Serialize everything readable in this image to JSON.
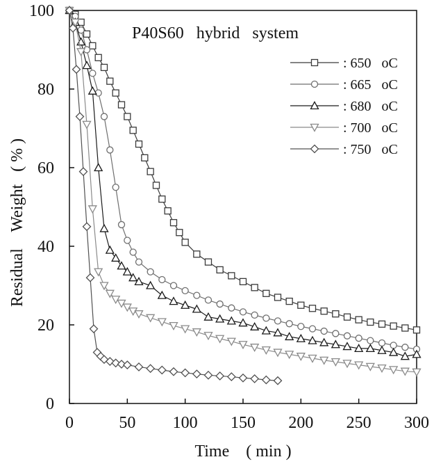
{
  "chart_data": {
    "type": "line",
    "title": "P40S60   hybrid   system",
    "xlabel": "Time    ( min )",
    "ylabel": "Residual    Weight   ( % )",
    "xlim": [
      0,
      300
    ],
    "ylim": [
      0,
      100
    ],
    "x_ticks": [
      0,
      50,
      100,
      150,
      200,
      250,
      300
    ],
    "y_ticks": [
      0,
      20,
      40,
      60,
      80,
      100
    ],
    "grid": false,
    "legend_position": "top-right",
    "series": [
      {
        "name": ": 650   oC",
        "marker": "square",
        "color": "#3a3a3a",
        "x": [
          0,
          5,
          10,
          15,
          20,
          25,
          30,
          35,
          40,
          45,
          50,
          55,
          60,
          65,
          70,
          75,
          80,
          85,
          90,
          95,
          100,
          110,
          120,
          130,
          140,
          150,
          160,
          170,
          180,
          190,
          200,
          210,
          220,
          230,
          240,
          250,
          260,
          270,
          280,
          290,
          300
        ],
        "y": [
          100,
          99,
          97,
          94,
          91,
          88,
          85.5,
          82,
          79,
          76,
          73,
          69.5,
          66,
          62.5,
          59,
          55.5,
          52,
          49,
          46,
          43.5,
          41,
          38,
          36,
          34,
          32.5,
          31,
          29.5,
          28,
          27,
          26,
          25,
          24.2,
          23.5,
          22.8,
          22,
          21.3,
          20.7,
          20.2,
          19.7,
          19.2,
          18.7
        ]
      },
      {
        "name": ": 665   oC",
        "marker": "circle",
        "color": "#6e6e6e",
        "x": [
          0,
          5,
          10,
          15,
          20,
          25,
          30,
          35,
          40,
          45,
          50,
          55,
          60,
          70,
          80,
          90,
          100,
          110,
          120,
          130,
          140,
          150,
          160,
          170,
          180,
          190,
          200,
          210,
          220,
          230,
          240,
          250,
          260,
          270,
          280,
          290,
          300
        ],
        "y": [
          100,
          98.5,
          95,
          90,
          84,
          79,
          73,
          64.5,
          55,
          45.5,
          41.5,
          38.5,
          36,
          33.5,
          31.5,
          30,
          28.7,
          27.5,
          26.3,
          25.3,
          24.3,
          23.3,
          22.5,
          21.7,
          21,
          20.3,
          19.6,
          19,
          18.4,
          17.8,
          17.2,
          16.6,
          16,
          15.4,
          14.8,
          14.3,
          13.8
        ]
      },
      {
        "name": ": 680   oC",
        "marker": "triangle-up",
        "color": "#1a1a1a",
        "x": [
          0,
          5,
          10,
          15,
          20,
          25,
          30,
          35,
          40,
          45,
          50,
          55,
          60,
          70,
          80,
          90,
          100,
          110,
          120,
          130,
          140,
          150,
          160,
          170,
          180,
          190,
          200,
          210,
          220,
          230,
          240,
          250,
          260,
          270,
          280,
          290,
          300
        ],
        "y": [
          100,
          97,
          92,
          86,
          79.5,
          60,
          44.5,
          39,
          37,
          35,
          33.5,
          32,
          31,
          30,
          27.5,
          26,
          25,
          24,
          22,
          21.5,
          21,
          20.5,
          19.5,
          18.5,
          18,
          17,
          16.5,
          16,
          15.5,
          15,
          14.5,
          14,
          14,
          13.5,
          13,
          12,
          12.5
        ]
      },
      {
        "name": ": 700   oC",
        "marker": "triangle-down",
        "color": "#8a8a8a",
        "x": [
          0,
          5,
          10,
          15,
          20,
          25,
          30,
          35,
          40,
          45,
          50,
          55,
          60,
          70,
          80,
          90,
          100,
          110,
          120,
          130,
          140,
          150,
          160,
          170,
          180,
          190,
          200,
          210,
          220,
          230,
          240,
          250,
          260,
          270,
          280,
          290,
          300
        ],
        "y": [
          100,
          97,
          89.5,
          71,
          49.5,
          33.5,
          30,
          28,
          26.5,
          25.5,
          24.5,
          23.5,
          22.8,
          21.8,
          20.8,
          19.8,
          19,
          18.2,
          17.3,
          16.5,
          15.8,
          15,
          14.3,
          13.6,
          13,
          12.5,
          12,
          11.5,
          11,
          10.6,
          10.2,
          9.8,
          9.4,
          9,
          8.6,
          8.2,
          8
        ]
      },
      {
        "name": ": 750   oC",
        "marker": "diamond",
        "color": "#505050",
        "x": [
          0,
          3,
          6,
          9,
          12,
          15,
          18,
          21,
          24,
          27,
          30,
          35,
          40,
          45,
          50,
          60,
          70,
          80,
          90,
          100,
          110,
          120,
          130,
          140,
          150,
          160,
          170,
          180
        ],
        "y": [
          100,
          95.5,
          85,
          73,
          59,
          45,
          32,
          19,
          13,
          12,
          11.2,
          10.7,
          10.3,
          10,
          9.8,
          9.3,
          8.9,
          8.5,
          8.1,
          7.8,
          7.5,
          7.2,
          7,
          6.8,
          6.5,
          6.3,
          6,
          5.8
        ]
      }
    ]
  }
}
